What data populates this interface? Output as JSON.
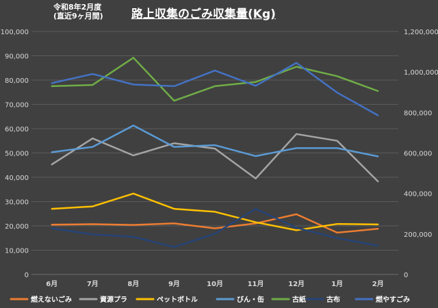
{
  "subtitle": {
    "line1": "令和8年2月度",
    "line2": "(直近9ヶ月間)"
  },
  "chart_data": {
    "type": "line",
    "title": "路上収集のごみ収集量(Kg)",
    "categories": [
      "6月",
      "7月",
      "8月",
      "9月",
      "10月",
      "11月",
      "12月",
      "1月",
      "2月"
    ],
    "left_axis": {
      "ylim": [
        0,
        100000
      ],
      "ticks": [
        0,
        10000,
        20000,
        30000,
        40000,
        50000,
        60000,
        70000,
        80000,
        90000,
        100000
      ],
      "tick_labels": [
        "0",
        "10,000",
        "20,000",
        "30,000",
        "40,000",
        "50,000",
        "60,000",
        "70,000",
        "80,000",
        "90,000",
        "100,000"
      ]
    },
    "right_axis": {
      "ylim": [
        0,
        1200000
      ],
      "ticks": [
        0,
        200000,
        400000,
        600000,
        800000,
        1000000,
        1200000
      ],
      "tick_labels": [
        "0",
        "200,000",
        "400,000",
        "600,000",
        "800,000",
        "1,000,000",
        "1,200,000"
      ]
    },
    "grid": true,
    "legend_position": "bottom",
    "series": [
      {
        "name": "燃えないごみ",
        "axis": "left",
        "color": "#ed7d31",
        "values": [
          20500,
          20700,
          20400,
          21000,
          19000,
          21000,
          24800,
          17200,
          18800
        ]
      },
      {
        "name": "資源プラ",
        "axis": "left",
        "color": "#a5a5a5",
        "values": [
          45300,
          56000,
          49000,
          54000,
          51800,
          39500,
          57800,
          55000,
          38300
        ]
      },
      {
        "name": "ペットボトル",
        "axis": "left",
        "color": "#ffc000",
        "values": [
          27000,
          28000,
          33300,
          27000,
          25800,
          21500,
          18200,
          20800,
          20600
        ]
      },
      {
        "name": "びん・缶",
        "axis": "left",
        "color": "#5b9bd5",
        "values": [
          50300,
          52500,
          61300,
          52500,
          53200,
          48700,
          52000,
          52000,
          48600
        ]
      },
      {
        "name": "古紙",
        "axis": "left",
        "color": "#70ad47",
        "values": [
          77500,
          78000,
          89200,
          71500,
          77500,
          79200,
          85500,
          81600,
          75500
        ]
      },
      {
        "name": "古布",
        "axis": "left",
        "color": "#264478",
        "values": [
          19000,
          16500,
          15500,
          11300,
          16800,
          27000,
          19200,
          15000,
          11800
        ]
      },
      {
        "name": "燃やすごみ",
        "axis": "right",
        "color": "#4472c4",
        "values": [
          945000,
          990000,
          938000,
          930000,
          1007000,
          932000,
          1045000,
          898000,
          786000
        ]
      }
    ]
  }
}
